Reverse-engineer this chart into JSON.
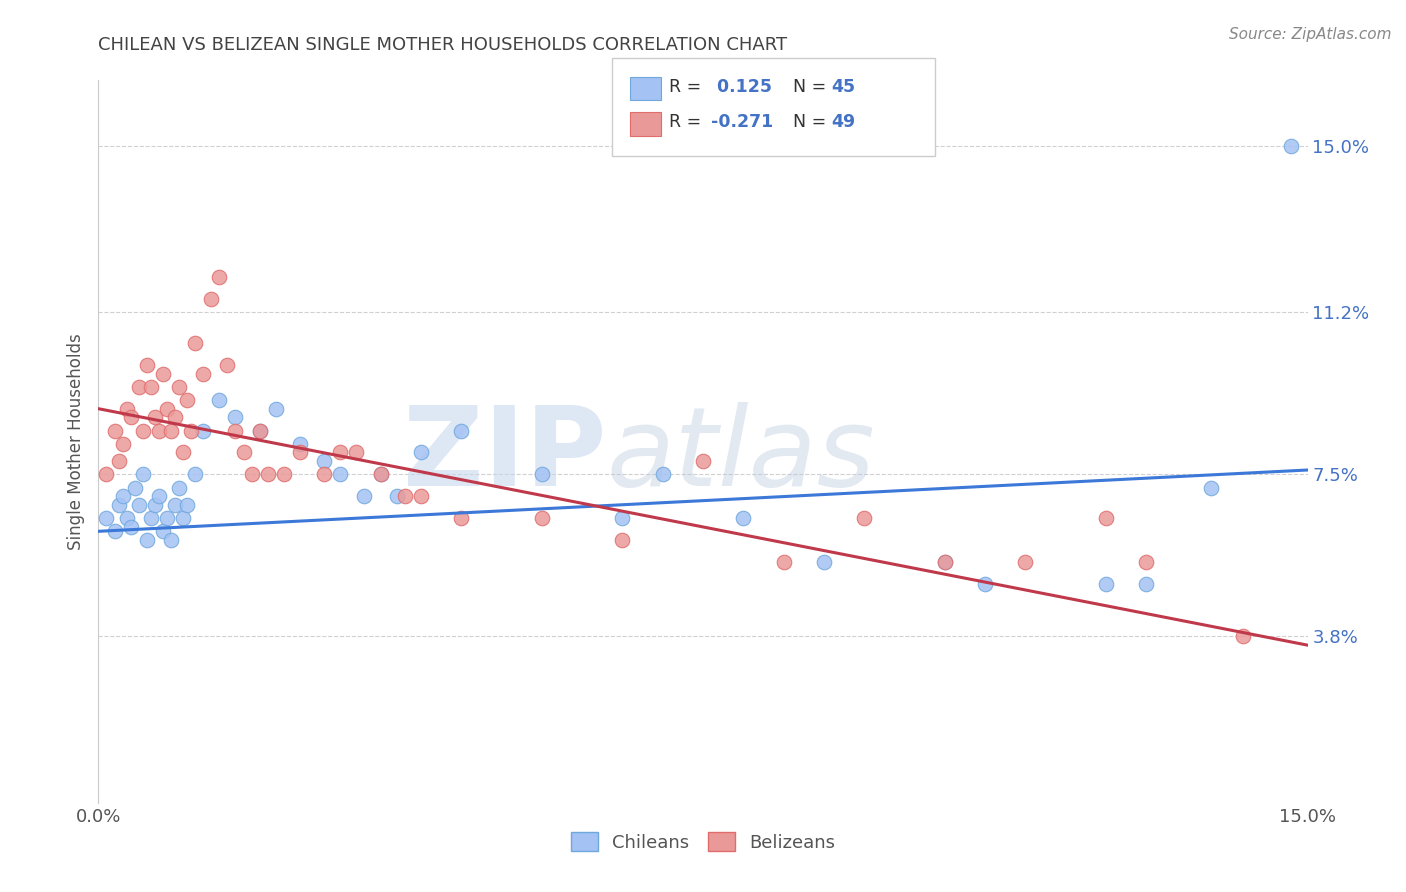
{
  "title": "CHILEAN VS BELIZEAN SINGLE MOTHER HOUSEHOLDS CORRELATION CHART",
  "source": "Source: ZipAtlas.com",
  "ylabel": "Single Mother Households",
  "xlim": [
    0.0,
    15.0
  ],
  "ylim": [
    0.0,
    16.5
  ],
  "ytick_positions": [
    3.8,
    7.5,
    11.2,
    15.0
  ],
  "ytick_labels": [
    "3.8%",
    "7.5%",
    "11.2%",
    "15.0%"
  ],
  "chilean_color": "#a4c2f4",
  "belizean_color": "#ea9999",
  "chilean_edge": "#6fa8dc",
  "belizean_edge": "#e06c6c",
  "chilean_R": 0.125,
  "chilean_N": 45,
  "belizean_R": -0.271,
  "belizean_N": 49,
  "chilean_x": [
    0.1,
    0.2,
    0.25,
    0.3,
    0.35,
    0.4,
    0.45,
    0.5,
    0.55,
    0.6,
    0.65,
    0.7,
    0.75,
    0.8,
    0.85,
    0.9,
    0.95,
    1.0,
    1.05,
    1.1,
    1.2,
    1.3,
    1.5,
    1.7,
    2.0,
    2.2,
    2.5,
    2.8,
    3.0,
    3.3,
    3.5,
    3.7,
    4.0,
    4.5,
    5.5,
    6.5,
    7.0,
    8.0,
    9.0,
    10.5,
    11.0,
    12.5,
    13.0,
    13.8,
    14.8
  ],
  "chilean_y": [
    6.5,
    6.2,
    6.8,
    7.0,
    6.5,
    6.3,
    7.2,
    6.8,
    7.5,
    6.0,
    6.5,
    6.8,
    7.0,
    6.2,
    6.5,
    6.0,
    6.8,
    7.2,
    6.5,
    6.8,
    7.5,
    8.5,
    9.2,
    8.8,
    8.5,
    9.0,
    8.2,
    7.8,
    7.5,
    7.0,
    7.5,
    7.0,
    8.0,
    8.5,
    7.5,
    6.5,
    7.5,
    6.5,
    5.5,
    5.5,
    5.0,
    5.0,
    5.0,
    7.2,
    15.0
  ],
  "belizean_x": [
    0.1,
    0.2,
    0.25,
    0.3,
    0.35,
    0.4,
    0.5,
    0.55,
    0.6,
    0.65,
    0.7,
    0.75,
    0.8,
    0.85,
    0.9,
    0.95,
    1.0,
    1.05,
    1.1,
    1.15,
    1.2,
    1.3,
    1.4,
    1.5,
    1.6,
    1.7,
    1.8,
    1.9,
    2.0,
    2.1,
    2.3,
    2.5,
    2.8,
    3.0,
    3.2,
    3.5,
    3.8,
    4.0,
    4.5,
    5.5,
    6.5,
    7.5,
    8.5,
    9.5,
    10.5,
    11.5,
    12.5,
    13.0,
    14.2
  ],
  "belizean_y": [
    7.5,
    8.5,
    7.8,
    8.2,
    9.0,
    8.8,
    9.5,
    8.5,
    10.0,
    9.5,
    8.8,
    8.5,
    9.8,
    9.0,
    8.5,
    8.8,
    9.5,
    8.0,
    9.2,
    8.5,
    10.5,
    9.8,
    11.5,
    12.0,
    10.0,
    8.5,
    8.0,
    7.5,
    8.5,
    7.5,
    7.5,
    8.0,
    7.5,
    8.0,
    8.0,
    7.5,
    7.0,
    7.0,
    6.5,
    6.5,
    6.0,
    7.8,
    5.5,
    6.5,
    5.5,
    5.5,
    6.5,
    5.5,
    3.8
  ],
  "watermark_zip": "ZIP",
  "watermark_atlas": "atlas",
  "grid_color": "#d0d0d0",
  "background_color": "#ffffff",
  "title_color": "#434343",
  "line_blue": "#3c78d8",
  "line_pink": "#c0394b",
  "blue_line_y0": 6.2,
  "blue_line_y1": 7.6,
  "pink_line_y0": 9.0,
  "pink_line_y1": 3.6
}
